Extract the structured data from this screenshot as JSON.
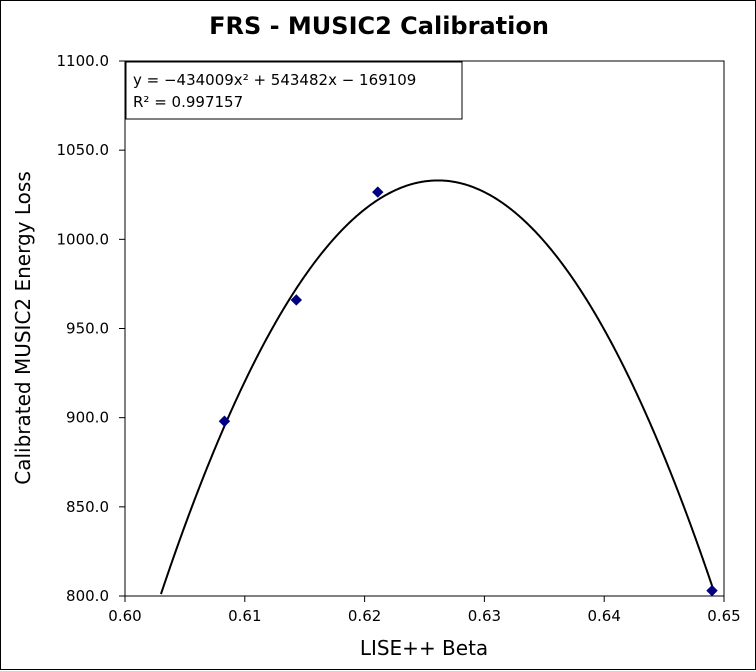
{
  "chart_data": {
    "type": "scatter",
    "title": "FRS - MUSIC2 Calibration",
    "xlabel": "LISE++ Beta",
    "ylabel": "Calibrated MUSIC2 Energy Loss",
    "xlim": [
      0.6,
      0.65
    ],
    "ylim": [
      800.0,
      1100.0
    ],
    "x_ticks": [
      "0.60",
      "0.61",
      "0.62",
      "0.63",
      "0.64",
      "0.65"
    ],
    "y_ticks": [
      "800.0",
      "850.0",
      "900.0",
      "950.0",
      "1000.0",
      "1050.0",
      "1100.0"
    ],
    "grid": false,
    "legend": "none",
    "series": [
      {
        "marker": "diamond",
        "color": "#000080",
        "points": [
          {
            "x": 0.6083,
            "y": 898.0
          },
          {
            "x": 0.6143,
            "y": 966.0
          },
          {
            "x": 0.6211,
            "y": 1026.5
          },
          {
            "x": 0.649,
            "y": 803.0
          }
        ]
      }
    ],
    "trendline": {
      "type": "polynomial-2",
      "coefficients": [
        -434009,
        543482,
        -169109
      ],
      "color": "#000000",
      "equation_label": "y = −434009x² + 543482x − 169109",
      "r2_label": "R² = 0.997157"
    }
  }
}
